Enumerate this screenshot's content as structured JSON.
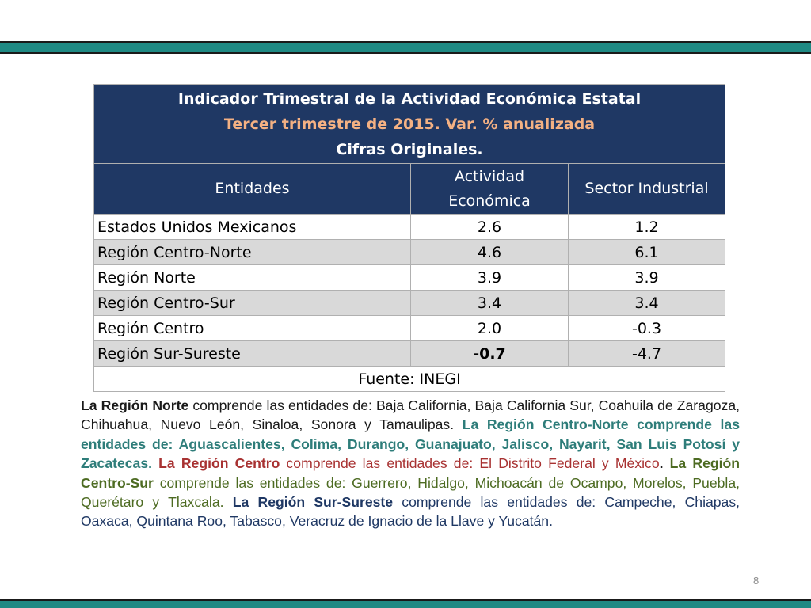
{
  "table": {
    "title": "Indicador Trimestral de la Actividad Económica Estatal",
    "subtitle": "Tercer trimestre de 2015. Var.  % anualizada",
    "subtitle2": "Cifras Originales.",
    "headers": [
      "Entidades",
      "Actividad Económica",
      "Sector Industrial"
    ],
    "rows": [
      {
        "entity": "Estados Unidos Mexicanos",
        "actividad": "2.6",
        "industrial": "1.2"
      },
      {
        "entity": "Región Centro-Norte",
        "actividad": "4.6",
        "industrial": "6.1"
      },
      {
        "entity": "Región Norte",
        "actividad": "3.9",
        "industrial": "3.9"
      },
      {
        "entity": "Región Centro-Sur",
        "actividad": "3.4",
        "industrial": "3.4"
      },
      {
        "entity": "Región Centro",
        "actividad": "2.0",
        "industrial": "-0.3"
      },
      {
        "entity": "Región Sur-Sureste",
        "actividad": "-0.7",
        "industrial": "-4.7"
      }
    ],
    "source": "Fuente: INEGI"
  },
  "description": {
    "p1_bold": "La Región Norte",
    "p1_text": " comprende las entidades de: Baja California, Baja California Sur, Coahuila de Zaragoza, Chihuahua, Nuevo León, Sinaloa, Sonora y Tamaulipas.",
    "p2_text": " La Región Centro-Norte comprende las entidades de: Aguascalientes, Colima, Durango, Guanajuato, Jalisco, Nayarit, San Luis Potosí y Zacatecas.",
    "p3_bold": " La Región Centro",
    "p3_text": " comprende las entidades de: El Distrito Federal y México",
    "p3_end": ".",
    "p4_bold": " La Región Centro-Sur",
    "p4_text": " comprende las entidades de: Guerrero, Hidalgo, Michoacán de Ocampo, Morelos, Puebla, Querétaro y Tlaxcala.",
    "p5_bold": " La Región Sur-Sureste",
    "p5_text": " comprende las entidades de: Campeche, Chiapas, Oaxaca, Quintana Roo, Tabasco, Veracruz de Ignacio de la Llave y Yucatán."
  },
  "page_number": "8",
  "colors": {
    "header_bg": "#1f3864",
    "subtitle": "#f4b183",
    "negative": "#c00000",
    "bar": "#1f8a84"
  }
}
